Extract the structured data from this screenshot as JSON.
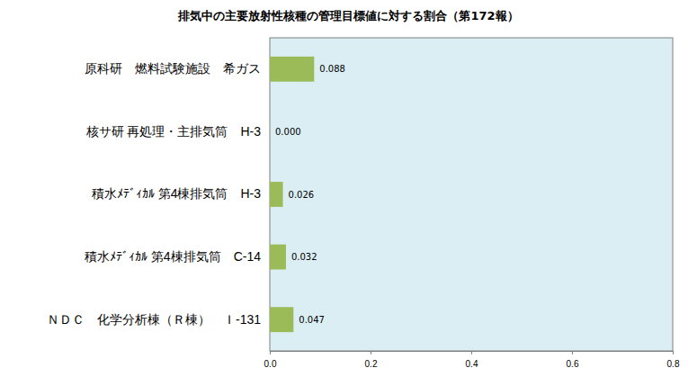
{
  "chart_data": {
    "type": "bar",
    "orientation": "horizontal",
    "title": "排気中の主要放射性核種の管理目標値に対する割合（第172報）",
    "categories": [
      "原科研　燃料試験施設　希ガス",
      "核サ研 再処理・主排気筒　H-3",
      "積水ﾒﾃﾞｨｶﾙ 第4棟排気筒　H-3",
      "積水ﾒﾃﾞｨｶﾙ 第4棟排気筒　C-14",
      "ＮＤＣ　化学分析棟（Ｒ棟）　Ｉ-131"
    ],
    "values": [
      0.088,
      0.0,
      0.026,
      0.032,
      0.047
    ],
    "value_labels": [
      "0.088",
      "0.000",
      "0.026",
      "0.032",
      "0.047"
    ],
    "color": "#9bbb59",
    "data_labels": true,
    "grid": false,
    "xlim": [
      0,
      0.8
    ],
    "xticks": [
      {
        "value": 0,
        "label": "0.0"
      },
      0.2,
      0.4,
      0.6,
      0.8
    ]
  }
}
